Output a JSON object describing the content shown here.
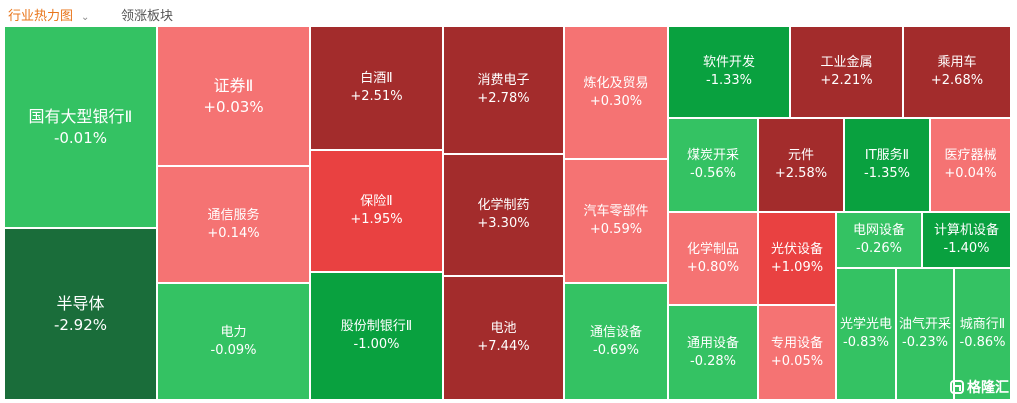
{
  "tabs": {
    "active": "行业热力图",
    "other": "领涨板块"
  },
  "logo_text": "格隆汇",
  "sectors": [
    {
      "name": "国有大型银行Ⅱ",
      "change": "-0.01%",
      "color": "#34c263"
    },
    {
      "name": "半导体",
      "change": "-2.92%",
      "color": "#1a6d3a"
    },
    {
      "name": "证券Ⅱ",
      "change": "+0.03%",
      "color": "#f57373"
    },
    {
      "name": "通信服务",
      "change": "+0.14%",
      "color": "#f57373"
    },
    {
      "name": "电力",
      "change": "-0.09%",
      "color": "#34c263"
    },
    {
      "name": "白酒Ⅱ",
      "change": "+2.51%",
      "color": "#a32c2c"
    },
    {
      "name": "保险Ⅱ",
      "change": "+1.95%",
      "color": "#e94141"
    },
    {
      "name": "股份制银行Ⅱ",
      "change": "-1.00%",
      "color": "#09a13f"
    },
    {
      "name": "消费电子",
      "change": "+2.78%",
      "color": "#a32c2c"
    },
    {
      "name": "化学制药",
      "change": "+3.30%",
      "color": "#a32c2c"
    },
    {
      "name": "电池",
      "change": "+7.44%",
      "color": "#a32c2c"
    },
    {
      "name": "炼化及贸易",
      "change": "+0.30%",
      "color": "#f57373"
    },
    {
      "name": "汽车零部件",
      "change": "+0.59%",
      "color": "#f57373"
    },
    {
      "name": "通信设备",
      "change": "-0.69%",
      "color": "#34c263"
    },
    {
      "name": "软件开发",
      "change": "-1.33%",
      "color": "#09a13f"
    },
    {
      "name": "工业金属",
      "change": "+2.21%",
      "color": "#a32c2c"
    },
    {
      "name": "乘用车",
      "change": "+2.68%",
      "color": "#a32c2c"
    },
    {
      "name": "煤炭开采",
      "change": "-0.56%",
      "color": "#34c263"
    },
    {
      "name": "元件",
      "change": "+2.58%",
      "color": "#a32c2c"
    },
    {
      "name": "IT服务Ⅱ",
      "change": "-1.35%",
      "color": "#09a13f"
    },
    {
      "name": "医疗器械",
      "change": "+0.04%",
      "color": "#f57373"
    },
    {
      "name": "化学制品",
      "change": "+0.80%",
      "color": "#f57373"
    },
    {
      "name": "光伏设备",
      "change": "+1.09%",
      "color": "#e94141"
    },
    {
      "name": "电网设备",
      "change": "-0.26%",
      "color": "#34c263"
    },
    {
      "name": "计算机设备",
      "change": "-1.40%",
      "color": "#09a13f"
    },
    {
      "name": "通用设备",
      "change": "-0.28%",
      "color": "#34c263"
    },
    {
      "name": "专用设备",
      "change": "+0.05%",
      "color": "#f57373"
    },
    {
      "name": "光学光电",
      "change": "-0.83%",
      "color": "#34c263"
    },
    {
      "name": "油气开采",
      "change": "-0.23%",
      "color": "#34c263"
    },
    {
      "name": "城商行Ⅱ",
      "change": "-0.86%",
      "color": "#34c263"
    }
  ]
}
